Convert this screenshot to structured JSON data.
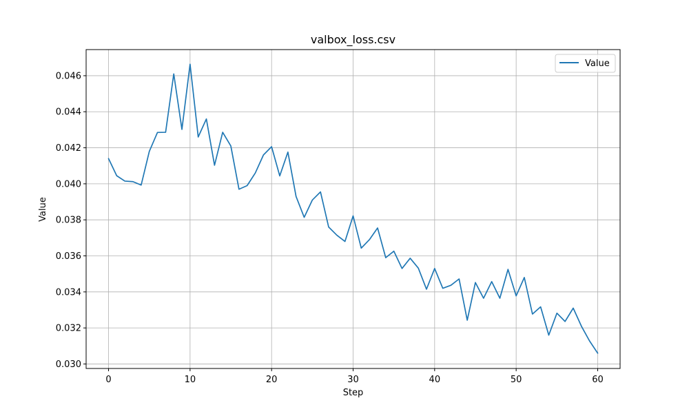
{
  "chart_data": {
    "type": "line",
    "title": "valbox_loss.csv",
    "xlabel": "Step",
    "ylabel": "Value",
    "xlim": [
      -2.75,
      62.75
    ],
    "ylim": [
      0.02975,
      0.04745
    ],
    "grid": true,
    "legend_position": "top-right",
    "x_ticks": [
      0,
      10,
      20,
      30,
      40,
      50,
      60
    ],
    "y_ticks": [
      0.03,
      0.032,
      0.034,
      0.036,
      0.038,
      0.04,
      0.042,
      0.044,
      0.046
    ],
    "y_tick_labels": [
      "0.030",
      "0.032",
      "0.034",
      "0.036",
      "0.038",
      "0.040",
      "0.042",
      "0.044",
      "0.046"
    ],
    "series": [
      {
        "name": "Value",
        "color": "#1f77b4",
        "x": [
          0,
          1,
          2,
          3,
          4,
          5,
          6,
          7,
          8,
          9,
          10,
          11,
          12,
          13,
          14,
          15,
          16,
          17,
          18,
          19,
          20,
          21,
          22,
          23,
          24,
          25,
          26,
          27,
          28,
          29,
          30,
          31,
          32,
          33,
          34,
          35,
          36,
          37,
          38,
          39,
          40,
          41,
          42,
          43,
          44,
          45,
          46,
          47,
          48,
          49,
          50,
          51,
          52,
          53,
          54,
          55,
          56,
          57,
          58,
          59,
          60
        ],
        "y": [
          0.0414,
          0.04045,
          0.04015,
          0.04012,
          0.03993,
          0.0418,
          0.04285,
          0.04286,
          0.0461,
          0.04302,
          0.04664,
          0.0426,
          0.0436,
          0.04103,
          0.04286,
          0.0421,
          0.0397,
          0.0399,
          0.0406,
          0.0416,
          0.04206,
          0.04044,
          0.04176,
          0.0393,
          0.03814,
          0.0391,
          0.03955,
          0.0376,
          0.03715,
          0.0368,
          0.03822,
          0.03643,
          0.0369,
          0.03755,
          0.0359,
          0.03626,
          0.0353,
          0.03587,
          0.03532,
          0.03415,
          0.0353,
          0.0342,
          0.03437,
          0.03472,
          0.03243,
          0.03452,
          0.03365,
          0.03457,
          0.03365,
          0.03525,
          0.03378,
          0.0348,
          0.03277,
          0.03317,
          0.0316,
          0.03282,
          0.03236,
          0.0331,
          0.0321,
          0.03128,
          0.0306
        ]
      }
    ]
  }
}
